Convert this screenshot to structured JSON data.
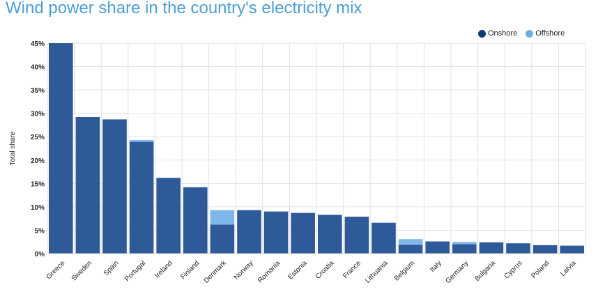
{
  "title": "Wind power share in the country's electricity mix",
  "chart_data": {
    "type": "bar",
    "stacked": true,
    "title": "Wind power share in the country's electricity mix",
    "ylabel": "Total share",
    "xlabel": "",
    "ylim": [
      0,
      45
    ],
    "yticks": [
      "0%",
      "5%",
      "10%",
      "15%",
      "20%",
      "25%",
      "30%",
      "35%",
      "40%",
      "45%"
    ],
    "grid": true,
    "legend_position": "top-right",
    "categories": [
      "Greece",
      "Sweden",
      "Spain",
      "Portugal",
      "Ireland",
      "Finland",
      "Denmark",
      "Norway",
      "Romania",
      "Estonia",
      "Croatia",
      "France",
      "Lithuania",
      "Belgium",
      "Italy",
      "Germany",
      "Bulgaria",
      "Cyprus",
      "Poland",
      "Latvia"
    ],
    "series": [
      {
        "name": "Onshore",
        "color": "#2e5a99",
        "values": [
          45,
          29.2,
          28.7,
          23.9,
          16.2,
          14.2,
          6.2,
          9.3,
          9.0,
          8.7,
          8.3,
          7.9,
          6.6,
          1.9,
          2.6,
          2.0,
          2.4,
          2.2,
          1.8,
          1.7
        ]
      },
      {
        "name": "Offshore",
        "color": "#7fb7ea",
        "values": [
          0,
          0,
          0,
          0.4,
          0,
          0,
          3.1,
          0,
          0,
          0,
          0,
          0,
          0,
          1.2,
          0,
          0.5,
          0,
          0,
          0,
          0
        ]
      }
    ]
  },
  "legend": [
    {
      "label": "Onshore",
      "color": "#0d3a78"
    },
    {
      "label": "Offshore",
      "color": "#6aaee6"
    }
  ]
}
